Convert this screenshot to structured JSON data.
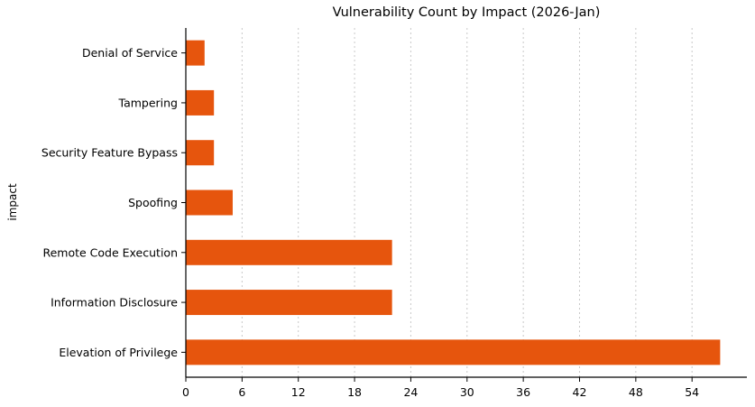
{
  "chart_data": {
    "type": "bar",
    "orientation": "horizontal",
    "title": "Vulnerability Count by Impact (2026-Jan)",
    "xlabel": "",
    "ylabel": "impact",
    "categories": [
      "Denial of Service",
      "Tampering",
      "Security Feature Bypass",
      "Spoofing",
      "Remote Code Execution",
      "Information Disclosure",
      "Elevation of Privilege"
    ],
    "values": [
      2,
      3,
      3,
      5,
      22,
      22,
      57
    ],
    "xticks": [
      0,
      6,
      12,
      18,
      24,
      30,
      36,
      42,
      48,
      54
    ],
    "xlim": [
      0,
      59.85
    ],
    "grid": "vertical-dashed",
    "legend": "none",
    "colors": {
      "bar": "#e6550d",
      "grid": "#c9c9c9",
      "axis": "#000000",
      "text": "#000000",
      "background": "#ffffff"
    }
  }
}
